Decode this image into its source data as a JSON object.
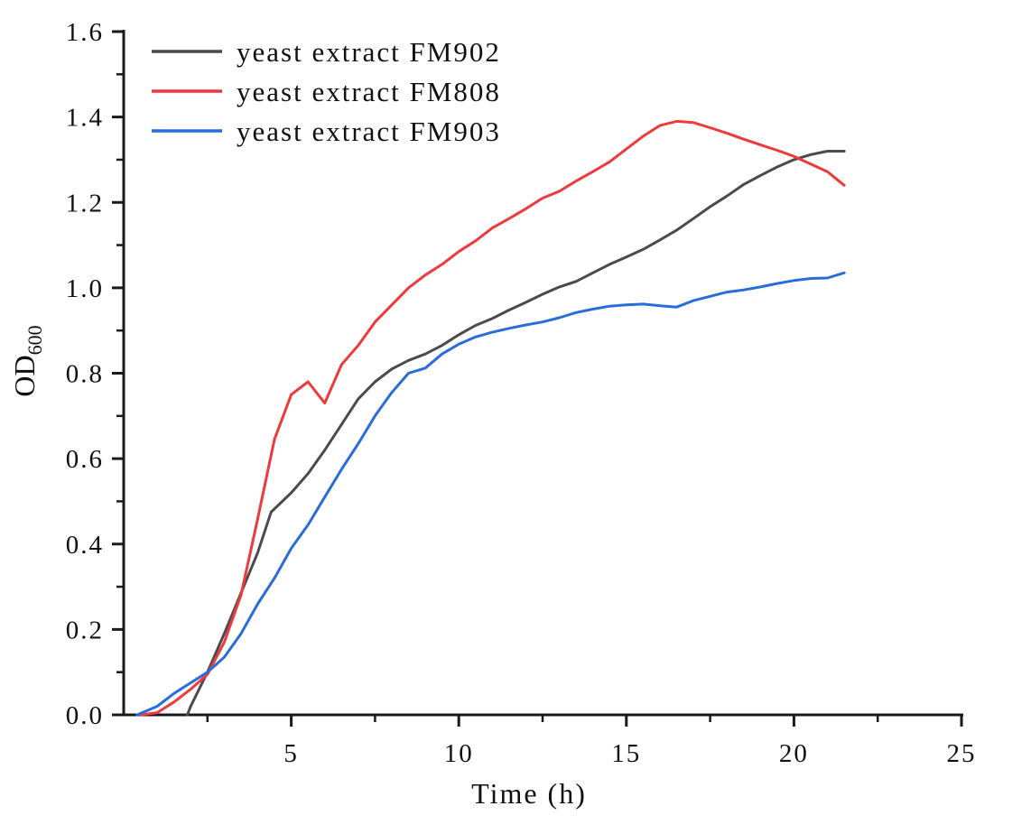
{
  "figure": {
    "background": "#ffffff"
  },
  "chart_data": {
    "type": "line",
    "title": "",
    "xlabel": "Time (h)",
    "ylabel": "OD",
    "ylabel_subscript": "600",
    "xlim": [
      0,
      25
    ],
    "ylim": [
      0,
      1.6
    ],
    "grid": false,
    "legend_position": "top-left",
    "axis_color": "#1a1a1a",
    "x_major_ticks": [
      5,
      10,
      15,
      20,
      25
    ],
    "x_major_tick_labels": [
      "5",
      "10",
      "15",
      "20",
      "25"
    ],
    "x_minor_ticks": [
      2.5,
      7.5,
      12.5,
      17.5,
      22.5
    ],
    "y_major_ticks": [
      0.0,
      0.2,
      0.4,
      0.6,
      0.8,
      1.0,
      1.2,
      1.4,
      1.6
    ],
    "y_major_tick_labels": [
      "0.0",
      "0.2",
      "0.4",
      "0.6",
      "0.8",
      "1.0",
      "1.2",
      "1.4",
      "1.6"
    ],
    "y_minor_ticks": [
      0.1,
      0.3,
      0.5,
      0.7,
      0.9,
      1.1,
      1.3,
      1.5
    ],
    "series": [
      {
        "name": "yeast extract FM902",
        "color": "#4b4b4b",
        "points": [
          [
            1.9,
            0.0
          ],
          [
            2.0,
            0.02
          ],
          [
            2.5,
            0.1
          ],
          [
            3.0,
            0.19
          ],
          [
            3.5,
            0.285
          ],
          [
            4.0,
            0.38
          ],
          [
            4.4,
            0.475
          ],
          [
            5.0,
            0.52
          ],
          [
            5.5,
            0.565
          ],
          [
            6.0,
            0.62
          ],
          [
            6.5,
            0.68
          ],
          [
            7.0,
            0.74
          ],
          [
            7.5,
            0.78
          ],
          [
            8.0,
            0.81
          ],
          [
            8.5,
            0.83
          ],
          [
            9.0,
            0.845
          ],
          [
            9.5,
            0.865
          ],
          [
            10.0,
            0.89
          ],
          [
            10.5,
            0.912
          ],
          [
            11.0,
            0.928
          ],
          [
            11.5,
            0.948
          ],
          [
            12.0,
            0.966
          ],
          [
            12.5,
            0.985
          ],
          [
            13.0,
            1.002
          ],
          [
            13.5,
            1.015
          ],
          [
            14.0,
            1.035
          ],
          [
            14.5,
            1.055
          ],
          [
            15.0,
            1.072
          ],
          [
            15.5,
            1.09
          ],
          [
            16.0,
            1.112
          ],
          [
            16.5,
            1.135
          ],
          [
            17.0,
            1.162
          ],
          [
            17.5,
            1.19
          ],
          [
            18.0,
            1.215
          ],
          [
            18.5,
            1.242
          ],
          [
            19.0,
            1.263
          ],
          [
            19.5,
            1.283
          ],
          [
            20.0,
            1.3
          ],
          [
            20.5,
            1.312
          ],
          [
            21.0,
            1.32
          ],
          [
            21.5,
            1.32
          ]
        ]
      },
      {
        "name": "yeast extract FM808",
        "color": "#ee3a3c",
        "points": [
          [
            0.5,
            0.0
          ],
          [
            1.0,
            0.005
          ],
          [
            1.5,
            0.03
          ],
          [
            2.0,
            0.06
          ],
          [
            2.5,
            0.095
          ],
          [
            3.0,
            0.17
          ],
          [
            3.5,
            0.28
          ],
          [
            4.0,
            0.46
          ],
          [
            4.5,
            0.645
          ],
          [
            5.0,
            0.75
          ],
          [
            5.5,
            0.78
          ],
          [
            6.0,
            0.73
          ],
          [
            6.5,
            0.82
          ],
          [
            7.0,
            0.865
          ],
          [
            7.5,
            0.92
          ],
          [
            8.0,
            0.96
          ],
          [
            8.5,
            1.0
          ],
          [
            9.0,
            1.03
          ],
          [
            9.5,
            1.055
          ],
          [
            10.0,
            1.085
          ],
          [
            10.5,
            1.11
          ],
          [
            11.0,
            1.14
          ],
          [
            11.5,
            1.162
          ],
          [
            12.0,
            1.185
          ],
          [
            12.5,
            1.21
          ],
          [
            13.0,
            1.226
          ],
          [
            13.5,
            1.25
          ],
          [
            14.0,
            1.272
          ],
          [
            14.5,
            1.295
          ],
          [
            15.0,
            1.325
          ],
          [
            15.5,
            1.355
          ],
          [
            16.0,
            1.38
          ],
          [
            16.5,
            1.39
          ],
          [
            17.0,
            1.387
          ],
          [
            17.5,
            1.375
          ],
          [
            18.0,
            1.362
          ],
          [
            18.5,
            1.348
          ],
          [
            19.0,
            1.335
          ],
          [
            19.5,
            1.322
          ],
          [
            20.0,
            1.308
          ],
          [
            20.5,
            1.29
          ],
          [
            21.0,
            1.272
          ],
          [
            21.5,
            1.24
          ]
        ]
      },
      {
        "name": "yeast extract FM903",
        "color": "#2a6dd8",
        "points": [
          [
            0.4,
            0.0
          ],
          [
            1.0,
            0.02
          ],
          [
            1.5,
            0.05
          ],
          [
            2.0,
            0.075
          ],
          [
            2.5,
            0.1
          ],
          [
            3.0,
            0.135
          ],
          [
            3.5,
            0.19
          ],
          [
            4.0,
            0.26
          ],
          [
            4.5,
            0.32
          ],
          [
            5.0,
            0.39
          ],
          [
            5.5,
            0.445
          ],
          [
            6.0,
            0.51
          ],
          [
            6.5,
            0.575
          ],
          [
            7.0,
            0.635
          ],
          [
            7.5,
            0.7
          ],
          [
            8.0,
            0.755
          ],
          [
            8.5,
            0.8
          ],
          [
            9.0,
            0.812
          ],
          [
            9.5,
            0.845
          ],
          [
            10.0,
            0.868
          ],
          [
            10.5,
            0.885
          ],
          [
            11.0,
            0.896
          ],
          [
            11.5,
            0.905
          ],
          [
            12.0,
            0.913
          ],
          [
            12.5,
            0.92
          ],
          [
            13.0,
            0.93
          ],
          [
            13.5,
            0.942
          ],
          [
            14.0,
            0.95
          ],
          [
            14.5,
            0.957
          ],
          [
            15.0,
            0.96
          ],
          [
            15.5,
            0.962
          ],
          [
            16.0,
            0.958
          ],
          [
            16.5,
            0.955
          ],
          [
            17.0,
            0.97
          ],
          [
            17.5,
            0.98
          ],
          [
            18.0,
            0.99
          ],
          [
            18.5,
            0.995
          ],
          [
            19.0,
            1.002
          ],
          [
            19.5,
            1.01
          ],
          [
            20.0,
            1.017
          ],
          [
            20.5,
            1.022
          ],
          [
            21.0,
            1.023
          ],
          [
            21.5,
            1.035
          ]
        ]
      }
    ]
  }
}
